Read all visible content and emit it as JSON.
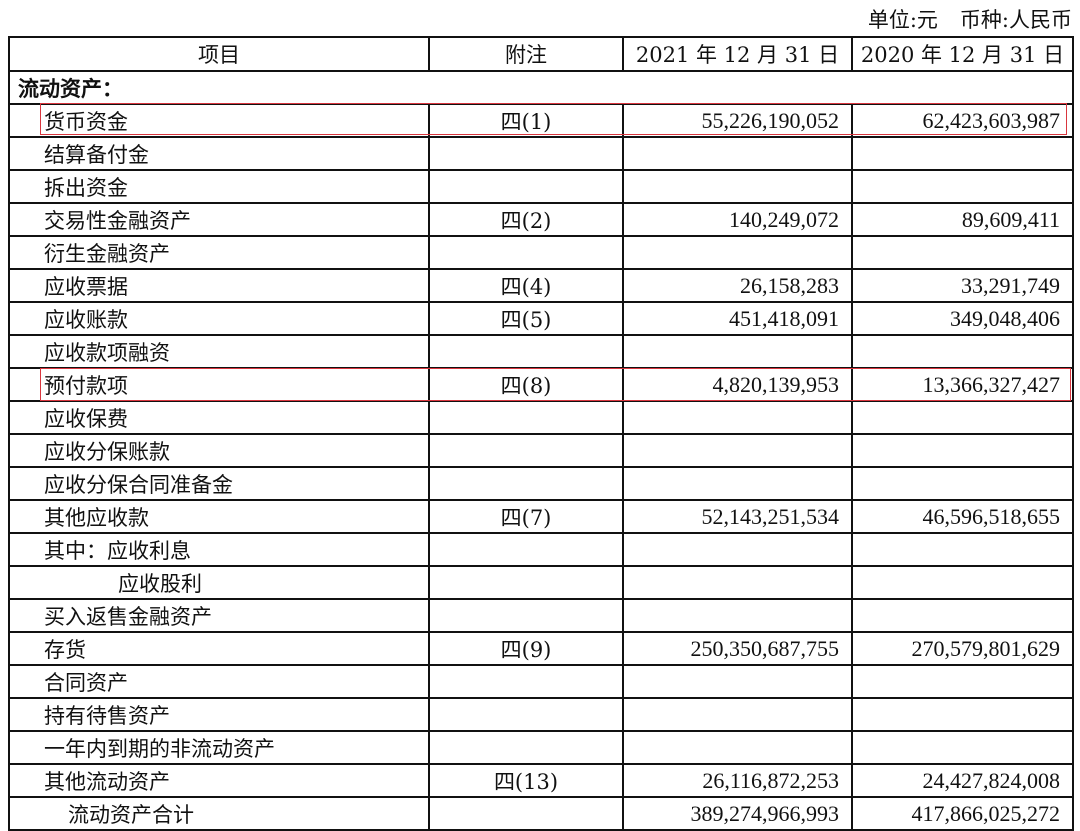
{
  "unit_line": {
    "unit": "单位:元",
    "currency": "币种:人民币"
  },
  "headers": [
    "项目",
    "附注",
    "2021 年 12 月 31 日",
    "2020 年 12 月 31 日"
  ],
  "section": "流动资产：",
  "rows": [
    {
      "item": "货币资金",
      "note": "四(1)",
      "y2021": "55,226,190,052",
      "y2020": "62,423,603,987",
      "highlight": true
    },
    {
      "item": "结算备付金",
      "note": "",
      "y2021": "",
      "y2020": ""
    },
    {
      "item": "拆出资金",
      "note": "",
      "y2021": "",
      "y2020": ""
    },
    {
      "item": "交易性金融资产",
      "note": "四(2)",
      "y2021": "140,249,072",
      "y2020": "89,609,411"
    },
    {
      "item": "衍生金融资产",
      "note": "",
      "y2021": "",
      "y2020": ""
    },
    {
      "item": "应收票据",
      "note": "四(4)",
      "y2021": "26,158,283",
      "y2020": "33,291,749"
    },
    {
      "item": "应收账款",
      "note": "四(5)",
      "y2021": "451,418,091",
      "y2020": "349,048,406"
    },
    {
      "item": "应收款项融资",
      "note": "",
      "y2021": "",
      "y2020": ""
    },
    {
      "item": "预付款项",
      "note": "四(8)",
      "y2021": "4,820,139,953",
      "y2020": "13,366,327,427",
      "highlight": true
    },
    {
      "item": "应收保费",
      "note": "",
      "y2021": "",
      "y2020": ""
    },
    {
      "item": "应收分保账款",
      "note": "",
      "y2021": "",
      "y2020": ""
    },
    {
      "item": "应收分保合同准备金",
      "note": "",
      "y2021": "",
      "y2020": ""
    },
    {
      "item": "其他应收款",
      "note": "四(7)",
      "y2021": "52,143,251,534",
      "y2020": "46,596,518,655"
    },
    {
      "item": "其中：应收利息",
      "note": "",
      "y2021": "",
      "y2020": ""
    },
    {
      "item": "应收股利",
      "note": "",
      "y2021": "",
      "y2020": "",
      "indent": 2
    },
    {
      "item": "买入返售金融资产",
      "note": "",
      "y2021": "",
      "y2020": ""
    },
    {
      "item": "存货",
      "note": "四(9)",
      "y2021": "250,350,687,755",
      "y2020": "270,579,801,629"
    },
    {
      "item": "合同资产",
      "note": "",
      "y2021": "",
      "y2020": ""
    },
    {
      "item": "持有待售资产",
      "note": "",
      "y2021": "",
      "y2020": ""
    },
    {
      "item": "一年内到期的非流动资产",
      "note": "",
      "y2021": "",
      "y2020": ""
    },
    {
      "item": "其他流动资产",
      "note": "四(13)",
      "y2021": "26,116,872,253",
      "y2020": "24,427,824,008"
    },
    {
      "item": "流动资产合计",
      "note": "",
      "y2021": "389,274,966,993",
      "y2020": "417,866,025,272",
      "indent": 1
    }
  ],
  "highlight_color": "#d9363e"
}
